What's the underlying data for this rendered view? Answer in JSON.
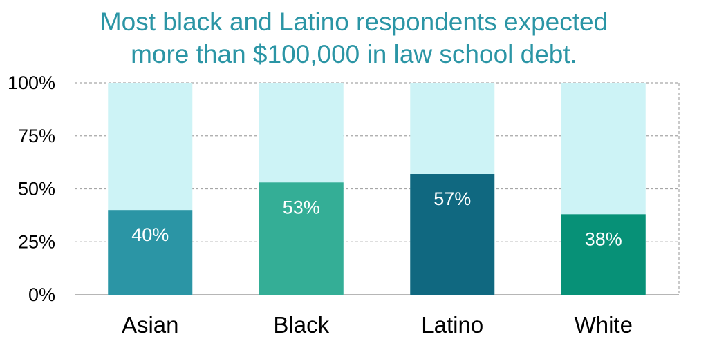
{
  "chart_data": {
    "type": "bar",
    "title_lines": [
      "Most black and Latino respondents expected",
      "more than $100,000 in law school debt."
    ],
    "categories": [
      "Asian",
      "Black",
      "Latino",
      "White"
    ],
    "values": [
      40,
      53,
      57,
      38
    ],
    "value_labels": [
      "40%",
      "53%",
      "57%",
      "38%"
    ],
    "bar_colors": [
      "#2b95a5",
      "#34ae96",
      "#106880",
      "#079177"
    ],
    "background_bar_value": 100,
    "background_bar_color": "#cdf3f6",
    "ylim": [
      0,
      100
    ],
    "yticks": [
      0,
      25,
      50,
      75,
      100
    ],
    "ytick_labels": [
      "0%",
      "25%",
      "50%",
      "75%",
      "100%"
    ],
    "grid": true,
    "xlabel": "",
    "ylabel": "",
    "legend": "none"
  },
  "colors": {
    "title": "#2b95a5",
    "grid": "#a6a6a6"
  }
}
